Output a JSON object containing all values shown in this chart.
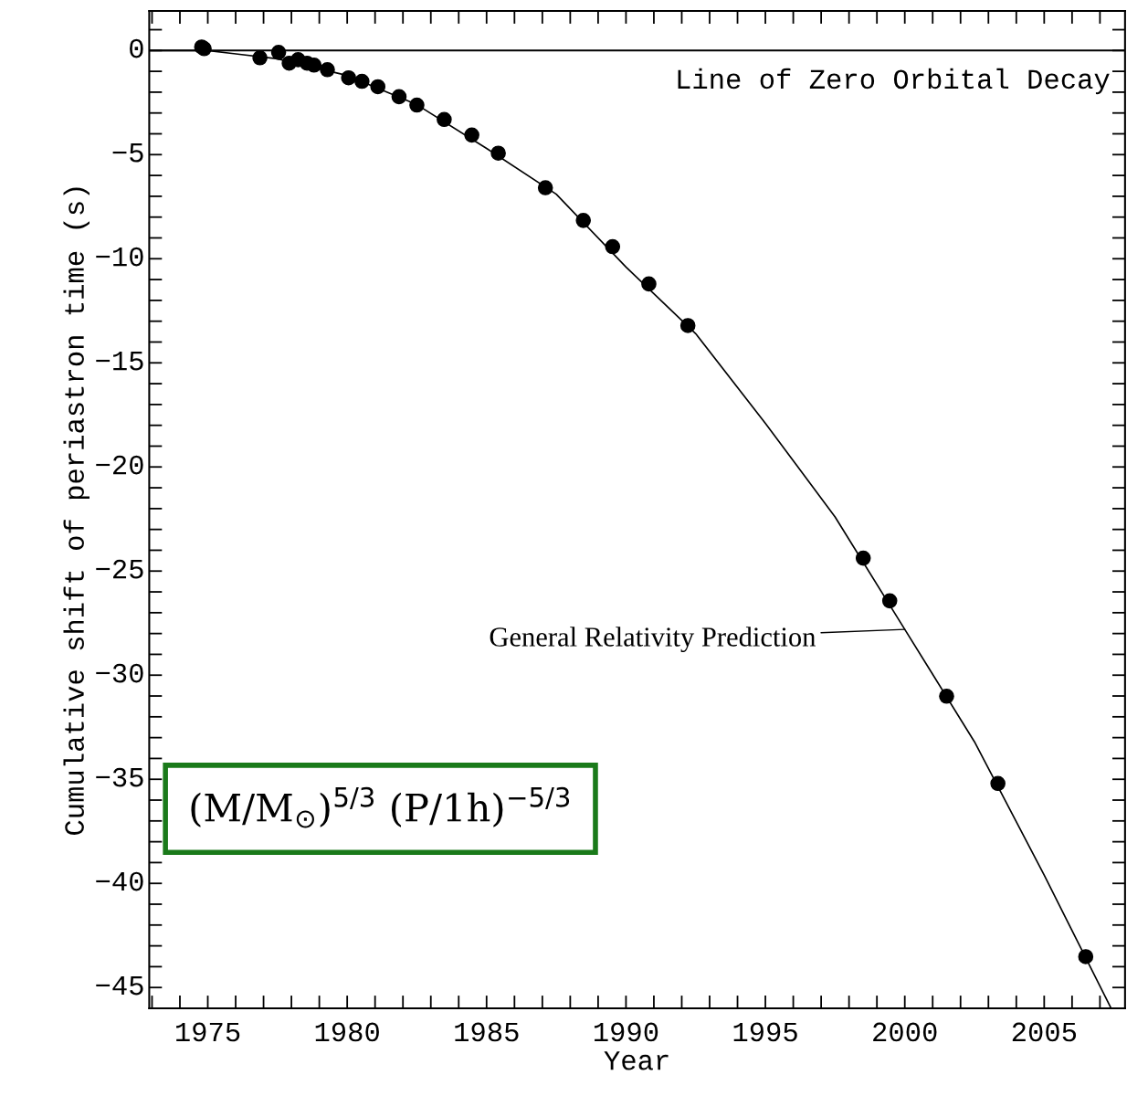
{
  "chart_data": {
    "type": "scatter",
    "xlabel": "Year",
    "ylabel": "Cumulative shift of periastron time (s)",
    "xlim": [
      1972.9,
      2007.9
    ],
    "ylim": [
      -46,
      1.9
    ],
    "xticks": [
      {
        "value": 1973,
        "label": null
      },
      {
        "value": 1974,
        "label": null
      },
      1975,
      {
        "value": 1976,
        "label": null
      },
      {
        "value": 1977,
        "label": null
      },
      {
        "value": 1978,
        "label": null
      },
      {
        "value": 1979,
        "label": null
      },
      1980,
      {
        "value": 1981,
        "label": null
      },
      {
        "value": 1982,
        "label": null
      },
      {
        "value": 1983,
        "label": null
      },
      {
        "value": 1984,
        "label": null
      },
      1985,
      {
        "value": 1986,
        "label": null
      },
      {
        "value": 1987,
        "label": null
      },
      {
        "value": 1988,
        "label": null
      },
      {
        "value": 1989,
        "label": null
      },
      1990,
      {
        "value": 1991,
        "label": null
      },
      {
        "value": 1992,
        "label": null
      },
      {
        "value": 1993,
        "label": null
      },
      {
        "value": 1994,
        "label": null
      },
      1995,
      {
        "value": 1996,
        "label": null
      },
      {
        "value": 1997,
        "label": null
      },
      {
        "value": 1998,
        "label": null
      },
      {
        "value": 1999,
        "label": null
      },
      2000,
      {
        "value": 2001,
        "label": null
      },
      {
        "value": 2002,
        "label": null
      },
      {
        "value": 2003,
        "label": null
      },
      {
        "value": 2004,
        "label": null
      },
      2005,
      {
        "value": 2006,
        "label": null
      },
      {
        "value": 2007,
        "label": null
      }
    ],
    "yticks": [
      {
        "value": 1,
        "label": null
      },
      {
        "value": 0,
        "label": "0"
      },
      {
        "value": -1,
        "label": null
      },
      {
        "value": -2,
        "label": null
      },
      {
        "value": -3,
        "label": null
      },
      {
        "value": -4,
        "label": null
      },
      {
        "value": -5,
        "label": "−5"
      },
      {
        "value": -6,
        "label": null
      },
      {
        "value": -7,
        "label": null
      },
      {
        "value": -8,
        "label": null
      },
      {
        "value": -9,
        "label": null
      },
      {
        "value": -10,
        "label": "−10"
      },
      {
        "value": -11,
        "label": null
      },
      {
        "value": -12,
        "label": null
      },
      {
        "value": -13,
        "label": null
      },
      {
        "value": -14,
        "label": null
      },
      {
        "value": -15,
        "label": "−15"
      },
      {
        "value": -16,
        "label": null
      },
      {
        "value": -17,
        "label": null
      },
      {
        "value": -18,
        "label": null
      },
      {
        "value": -19,
        "label": null
      },
      {
        "value": -20,
        "label": "−20"
      },
      {
        "value": -21,
        "label": null
      },
      {
        "value": -22,
        "label": null
      },
      {
        "value": -23,
        "label": null
      },
      {
        "value": -24,
        "label": null
      },
      {
        "value": -25,
        "label": "−25"
      },
      {
        "value": -26,
        "label": null
      },
      {
        "value": -27,
        "label": null
      },
      {
        "value": -28,
        "label": null
      },
      {
        "value": -29,
        "label": null
      },
      {
        "value": -30,
        "label": "−30"
      },
      {
        "value": -31,
        "label": null
      },
      {
        "value": -32,
        "label": null
      },
      {
        "value": -33,
        "label": null
      },
      {
        "value": -34,
        "label": null
      },
      {
        "value": -35,
        "label": "−35"
      },
      {
        "value": -36,
        "label": null
      },
      {
        "value": -37,
        "label": null
      },
      {
        "value": -38,
        "label": null
      },
      {
        "value": -39,
        "label": null
      },
      {
        "value": -40,
        "label": "−40"
      },
      {
        "value": -41,
        "label": null
      },
      {
        "value": -42,
        "label": null
      },
      {
        "value": -43,
        "label": null
      },
      {
        "value": -44,
        "label": null
      },
      {
        "value": -45,
        "label": "−45"
      },
      {
        "value": -46,
        "label": null
      }
    ],
    "series": [
      {
        "type": "line",
        "color": "#000000",
        "line_style": "solid",
        "marker": "none",
        "x": [
          1972.9,
          1975,
          1977.5,
          1980,
          1982.5,
          1985,
          1987.5,
          1990,
          1992.5,
          1995,
          1997.5,
          2000,
          2002.5,
          2005,
          2007.4
        ],
        "values": [
          0,
          0,
          -0.4,
          -1.2,
          -2.6,
          -4.7,
          -6.9,
          -10.4,
          -13.6,
          -17.9,
          -22.4,
          -27.8,
          -33.2,
          -39.6,
          -46
        ]
      },
      {
        "color": "#000000",
        "marker": "circle",
        "x": [
          1974.78,
          1974.87,
          1976.87,
          1977.54,
          1977.92,
          1978.24,
          1978.56,
          1978.81,
          1979.29,
          1980.05,
          1980.53,
          1981.1,
          1981.86,
          1982.5,
          1983.48,
          1984.47,
          1985.42,
          1987.11,
          1988.47,
          1989.52,
          1990.82,
          1992.22,
          1998.51,
          1999.46,
          2001.5,
          2003.34,
          2006.49
        ],
        "values": [
          0.17,
          0.09,
          -0.35,
          -0.09,
          -0.61,
          -0.44,
          -0.61,
          -0.7,
          -0.92,
          -1.31,
          -1.48,
          -1.74,
          -2.22,
          -2.62,
          -3.31,
          -4.06,
          -4.93,
          -6.59,
          -8.16,
          -9.42,
          -11.21,
          -13.21,
          -24.38,
          -26.43,
          -31.01,
          -35.2,
          -43.52
        ]
      }
    ],
    "ref_lines": [
      {
        "axis": "y",
        "value": 0,
        "label": "Line of Zero Orbital Decay",
        "color": "#000000",
        "line_style": "solid"
      }
    ],
    "annotations": [
      "General Relativity Prediction",
      "(M/M$_{⊙}$)$^{5/3}$ (P/1h)$^{−5/3}$"
    ]
  }
}
